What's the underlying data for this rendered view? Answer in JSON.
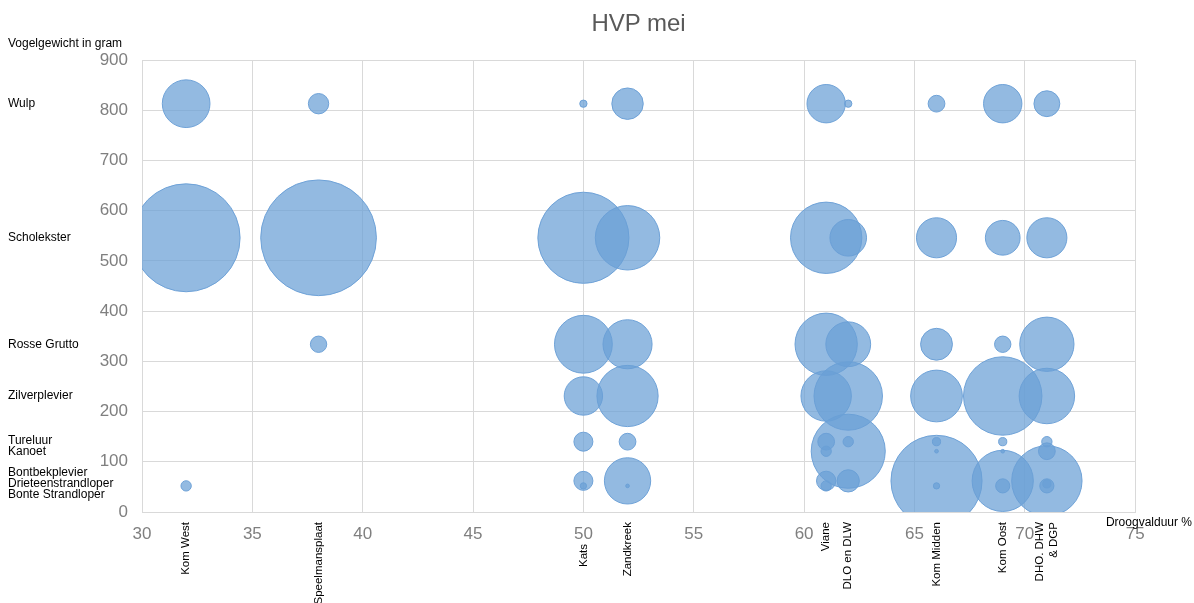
{
  "chart_data": {
    "type": "bubble",
    "title": "HVP mei",
    "xlabel": "Droogvalduur %",
    "ylabel": "Vogelgewicht in gram",
    "xlim": [
      30,
      75
    ],
    "xticks": [
      30,
      35,
      40,
      45,
      50,
      55,
      60,
      65,
      70,
      75
    ],
    "ylim": [
      0,
      900
    ],
    "yticks": [
      0,
      100,
      200,
      300,
      400,
      500,
      600,
      700,
      800,
      900
    ],
    "grid": true,
    "legend": false,
    "annotations": [
      "Wulp",
      "Scholekster",
      "Rosse Grutto",
      "Zilverplevier",
      "Tureluur",
      "Kanoet",
      "Bontbekplevier",
      "Drieteenstrandloper",
      "Bonte Strandloper",
      "Kom West",
      "Speelmansplaat",
      "Kats",
      "Zandkreek",
      "Viane",
      "DLO en DLW",
      "Kom Midden",
      "Kom Oost",
      "DHO. DHW & DGP"
    ],
    "series": [
      {
        "color": "#6a9fd6",
        "x": [
          32,
          38,
          50,
          52,
          61,
          62,
          66,
          69,
          71
        ],
        "values": [
          813,
          813,
          813,
          813,
          813,
          813,
          813,
          813,
          813
        ],
        "sizes": [
          0.17,
          0.031,
          0.004,
          0.074,
          0.11,
          0.004,
          0.021,
          0.11,
          0.05
        ]
      },
      {
        "color": "#6a9fd6",
        "x": [
          32,
          38,
          50,
          52,
          61,
          62,
          66,
          69,
          71
        ],
        "values": [
          546,
          546,
          546,
          546,
          546,
          546,
          546,
          546,
          546
        ],
        "sizes": [
          0.87,
          1,
          0.62,
          0.31,
          0.38,
          0.1,
          0.12,
          0.09,
          0.12
        ]
      },
      {
        "color": "#6a9fd6",
        "x": [
          38,
          50,
          52,
          61,
          62,
          66,
          69,
          71
        ],
        "values": [
          334,
          334,
          334,
          334,
          334,
          334,
          334,
          334
        ],
        "sizes": [
          0.02,
          0.25,
          0.18,
          0.29,
          0.15,
          0.076,
          0.02,
          0.22
        ]
      },
      {
        "color": "#6a9fd6",
        "x": [
          50,
          52,
          61,
          62,
          66,
          69,
          71
        ],
        "values": [
          231,
          231,
          231,
          231,
          231,
          231,
          231
        ],
        "sizes": [
          0.11,
          0.28,
          0.19,
          0.35,
          0.2,
          0.46,
          0.23
        ]
      },
      {
        "color": "#6a9fd6",
        "x": [
          50,
          52,
          61,
          62,
          66,
          69,
          71
        ],
        "values": [
          140,
          140,
          140,
          140,
          140,
          140,
          140
        ],
        "sizes": [
          0.027,
          0.021,
          0.021,
          0.008,
          0.005,
          0.005,
          0.008
        ]
      },
      {
        "color": "#6a9fd6",
        "x": [
          61,
          62,
          66,
          69,
          71
        ],
        "values": [
          121,
          121,
          121,
          121,
          121
        ],
        "sizes": [
          0.008,
          0.41,
          0.001,
          0.001,
          0.021
        ]
      },
      {
        "color": "#6a9fd6",
        "x": [
          50,
          52,
          61,
          62,
          66,
          69,
          71
        ],
        "values": [
          62,
          62,
          62,
          62,
          62,
          62,
          62
        ],
        "sizes": [
          0.027,
          0.16,
          0.028,
          0.037,
          0.62,
          0.28,
          0.37
        ]
      },
      {
        "color": "#6a9fd6",
        "x": [
          71
        ],
        "values": [
          56
        ],
        "sizes": [
          0.005
        ]
      },
      {
        "color": "#6a9fd6",
        "x": [
          32,
          50,
          52,
          61,
          66,
          69,
          71
        ],
        "values": [
          52,
          52,
          52,
          52,
          52,
          52,
          52
        ],
        "sizes": [
          0.008,
          0.003,
          0.001,
          0.008,
          0.003,
          0.015,
          0.015
        ]
      }
    ]
  }
}
